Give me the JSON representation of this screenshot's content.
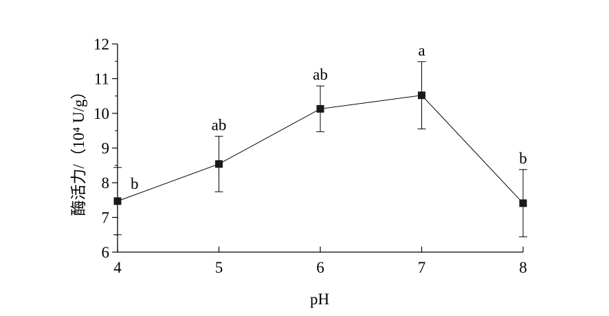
{
  "chart_data": {
    "type": "line",
    "x": [
      4,
      5,
      6,
      7,
      8
    ],
    "series": [
      {
        "values": [
          7.47,
          8.54,
          10.13,
          10.52,
          7.41
        ],
        "error": [
          0.97,
          0.8,
          0.66,
          0.97,
          0.97
        ],
        "significance": [
          "b",
          "ab",
          "ab",
          "a",
          "b"
        ]
      }
    ],
    "xlabel": "pH",
    "ylabel": "酶活力/（10⁴ U/g）",
    "xticks": [
      "4",
      "5",
      "6",
      "7",
      "8"
    ],
    "yticks": [
      "6",
      "7",
      "8",
      "9",
      "10",
      "11",
      "12"
    ],
    "xlim": [
      4,
      8
    ],
    "ylim": [
      6,
      12
    ],
    "grid": false,
    "marker": "square",
    "colors": {
      "line": "#000000",
      "marker": "#1a1a1a"
    }
  }
}
